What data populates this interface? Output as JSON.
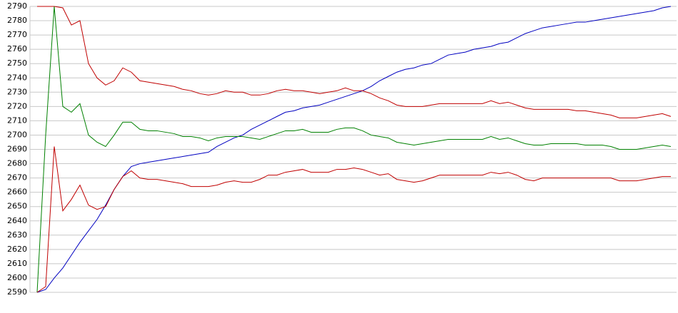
{
  "chart_data": {
    "type": "line",
    "ylim": [
      2590,
      2790
    ],
    "yticks": [
      2590,
      2600,
      2610,
      2620,
      2630,
      2640,
      2650,
      2660,
      2670,
      2680,
      2690,
      2700,
      2710,
      2720,
      2730,
      2740,
      2750,
      2760,
      2770,
      2780,
      2790
    ],
    "grid": true,
    "series": [
      {
        "color": "#0000c0",
        "values": [
          2590,
          2592,
          2600,
          2607,
          2616,
          2625,
          2633,
          2641,
          2651,
          2662,
          2671,
          2678,
          2680,
          2681,
          2682,
          2683,
          2684,
          2685,
          2686,
          2687,
          2688,
          2692,
          2695,
          2698,
          2700,
          2704,
          2707,
          2710,
          2713,
          2716,
          2717,
          2719,
          2720,
          2721,
          2723,
          2725,
          2727,
          2729,
          2731,
          2734,
          2738,
          2741,
          2744,
          2746,
          2747,
          2749,
          2750,
          2753,
          2756,
          2757,
          2758,
          2760,
          2761,
          2762,
          2764,
          2765,
          2768,
          2771,
          2773,
          2775,
          2776,
          2777,
          2778,
          2779,
          2779,
          2780,
          2781,
          2782,
          2783,
          2784,
          2785,
          2786,
          2787,
          2789,
          2790
        ]
      },
      {
        "color": "#c00000",
        "values": [
          2790,
          2790,
          2790,
          2789,
          2777,
          2780,
          2750,
          2740,
          2735,
          2738,
          2747,
          2744,
          2738,
          2737,
          2736,
          2735,
          2734,
          2732,
          2731,
          2729,
          2728,
          2729,
          2731,
          2730,
          2730,
          2728,
          2728,
          2729,
          2731,
          2732,
          2731,
          2731,
          2730,
          2729,
          2730,
          2731,
          2733,
          2731,
          2731,
          2729,
          2726,
          2724,
          2721,
          2720,
          2720,
          2720,
          2721,
          2722,
          2722,
          2722,
          2722,
          2722,
          2722,
          2724,
          2722,
          2723,
          2721,
          2719,
          2718,
          2718,
          2718,
          2718,
          2718,
          2717,
          2717,
          2716,
          2715,
          2714,
          2712,
          2712,
          2712,
          2713,
          2714,
          2715,
          2713
        ]
      },
      {
        "color": "#008000",
        "values": [
          2590,
          2700,
          2790,
          2720,
          2716,
          2722,
          2700,
          2695,
          2692,
          2700,
          2709,
          2709,
          2704,
          2703,
          2703,
          2702,
          2701,
          2699,
          2699,
          2698,
          2696,
          2698,
          2699,
          2699,
          2699,
          2698,
          2697,
          2699,
          2701,
          2703,
          2703,
          2704,
          2702,
          2702,
          2702,
          2704,
          2705,
          2705,
          2703,
          2700,
          2699,
          2698,
          2695,
          2694,
          2693,
          2694,
          2695,
          2696,
          2697,
          2697,
          2697,
          2697,
          2697,
          2699,
          2697,
          2698,
          2696,
          2694,
          2693,
          2693,
          2694,
          2694,
          2694,
          2694,
          2693,
          2693,
          2693,
          2692,
          2690,
          2690,
          2690,
          2691,
          2692,
          2693,
          2692
        ]
      },
      {
        "color": "#c00000",
        "values": [
          2590,
          2594,
          2692,
          2647,
          2655,
          2665,
          2651,
          2648,
          2650,
          2662,
          2671,
          2675,
          2670,
          2669,
          2669,
          2668,
          2667,
          2666,
          2664,
          2664,
          2664,
          2665,
          2667,
          2668,
          2667,
          2667,
          2669,
          2672,
          2672,
          2674,
          2675,
          2676,
          2674,
          2674,
          2674,
          2676,
          2676,
          2677,
          2676,
          2674,
          2672,
          2673,
          2669,
          2668,
          2667,
          2668,
          2670,
          2672,
          2672,
          2672,
          2672,
          2672,
          2672,
          2674,
          2673,
          2674,
          2672,
          2669,
          2668,
          2670,
          2670,
          2670,
          2670,
          2670,
          2670,
          2670,
          2670,
          2670,
          2668,
          2668,
          2668,
          2669,
          2670,
          2671,
          2671
        ]
      }
    ]
  }
}
